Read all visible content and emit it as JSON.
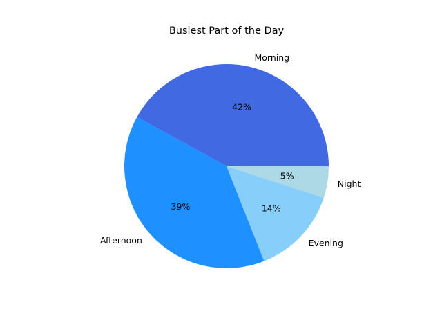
{
  "chart_data": {
    "type": "pie",
    "title": "Busiest Part of the Day",
    "categories": [
      "Morning",
      "Afternoon",
      "Evening",
      "Night"
    ],
    "values": [
      42,
      39,
      14,
      5
    ],
    "percent_labels": [
      "42%",
      "39%",
      "14%",
      "5%"
    ],
    "colors": [
      "#4169E1",
      "#1E90FF",
      "#87CEFA",
      "#ADD8E6"
    ],
    "start_angle_deg": 0,
    "direction": "counterclockwise",
    "legend": "none"
  }
}
